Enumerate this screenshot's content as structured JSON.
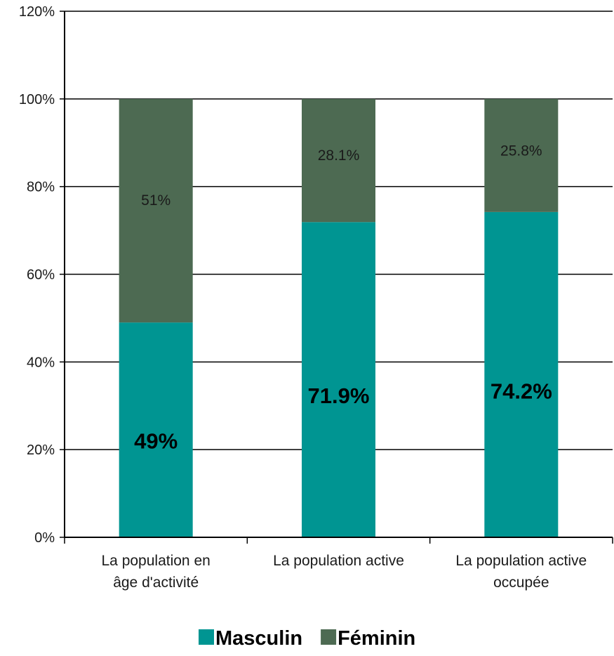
{
  "chart_data": {
    "type": "bar",
    "stacked": true,
    "categories": [
      [
        "La population en",
        "âge d'activité"
      ],
      [
        "La population active"
      ],
      [
        "La population active",
        "occupée"
      ]
    ],
    "series": [
      {
        "name": "Masculin",
        "color": "#009592",
        "values": [
          49,
          71.9,
          74.2
        ],
        "labels": [
          "49%",
          "71.9%",
          "74.2%"
        ]
      },
      {
        "name": "Féminin",
        "color": "#4d6a52",
        "values": [
          51,
          28.1,
          25.8
        ],
        "labels": [
          "51%",
          "28.1%",
          "25.8%"
        ]
      }
    ],
    "y_ticks": [
      "0%",
      "20%",
      "40%",
      "60%",
      "80%",
      "100%",
      "120%"
    ],
    "ylim": [
      0,
      120
    ],
    "grid": true,
    "legend_position": "bottom"
  }
}
